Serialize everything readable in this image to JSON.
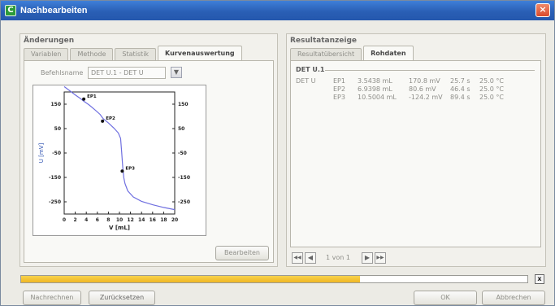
{
  "window": {
    "title": "Nachbearbeiten",
    "close_label": "×"
  },
  "left_panel": {
    "title": "Änderungen",
    "tabs": [
      {
        "label": "Variablen",
        "active": false
      },
      {
        "label": "Methode",
        "active": false
      },
      {
        "label": "Statistik",
        "active": false
      },
      {
        "label": "Kurvenauswertung",
        "active": true
      }
    ],
    "command_label": "Befehlsname",
    "command_value": "DET U.1 - DET U",
    "edit_button": "Bearbeiten"
  },
  "chart_data": {
    "type": "line",
    "xlabel": "V [mL]",
    "ylabel": "U [mV]",
    "xlim": [
      0,
      20
    ],
    "ylim": [
      -300,
      200
    ],
    "x_ticks": [
      "0",
      "2",
      "4",
      "6",
      "8",
      "10",
      "12",
      "14",
      "16",
      "18",
      "20"
    ],
    "y_ticks": [
      "150",
      "50",
      "-50",
      "-150",
      "-250"
    ],
    "y_tick_values": [
      150,
      50,
      -50,
      -150,
      -250
    ],
    "series": [
      {
        "color": "#6f6fe0",
        "x": [
          0.0,
          1.0,
          2.0,
          3.0,
          3.5,
          4.5,
          5.5,
          6.5,
          7.0,
          8.0,
          9.0,
          9.8,
          10.2,
          10.4,
          10.6,
          10.8,
          11.0,
          11.5,
          12.5,
          14.0,
          16.0,
          18.0,
          20.0
        ],
        "y": [
          222,
          205,
          188,
          172,
          163,
          147,
          128,
          108,
          92,
          73,
          52,
          32,
          10,
          -45,
          -110,
          -152,
          -175,
          -205,
          -230,
          -248,
          -262,
          -273,
          -282
        ]
      }
    ],
    "points": [
      {
        "label": "EP1",
        "x": 3.5438,
        "y": 170.8
      },
      {
        "label": "EP2",
        "x": 6.9398,
        "y": 80.6
      },
      {
        "label": "EP3",
        "x": 10.5004,
        "y": -124.2
      }
    ]
  },
  "right_panel": {
    "title": "Resultatanzeige",
    "tabs": [
      {
        "label": "Resultatübersicht",
        "active": false
      },
      {
        "label": "Rohdaten",
        "active": true
      }
    ],
    "section_title": "DET U.1",
    "group_label": "DET U",
    "rows": [
      {
        "ep": "EP1",
        "volume": "3.5438 mL",
        "potential": "170.8 mV",
        "time": "25.7 s",
        "temp": "25.0 °C"
      },
      {
        "ep": "EP2",
        "volume": "6.9398 mL",
        "potential": "80.6 mV",
        "time": "46.4 s",
        "temp": "25.0 °C"
      },
      {
        "ep": "EP3",
        "volume": "10.5004 mL",
        "potential": "-124.2 mV",
        "time": "89.4 s",
        "temp": "25.0 °C"
      }
    ],
    "pagination": {
      "text": "1 von 1",
      "first": "◀◀",
      "prev": "◀",
      "next": "▶",
      "last": "▶▶"
    }
  },
  "progress": {
    "fraction": 0.67,
    "cancel_label": "x"
  },
  "footer": {
    "recalc_button": "Nachrechnen",
    "reset_button": "Zurücksetzen",
    "ok_button": "OK",
    "cancel_button": "Abbrechen"
  }
}
